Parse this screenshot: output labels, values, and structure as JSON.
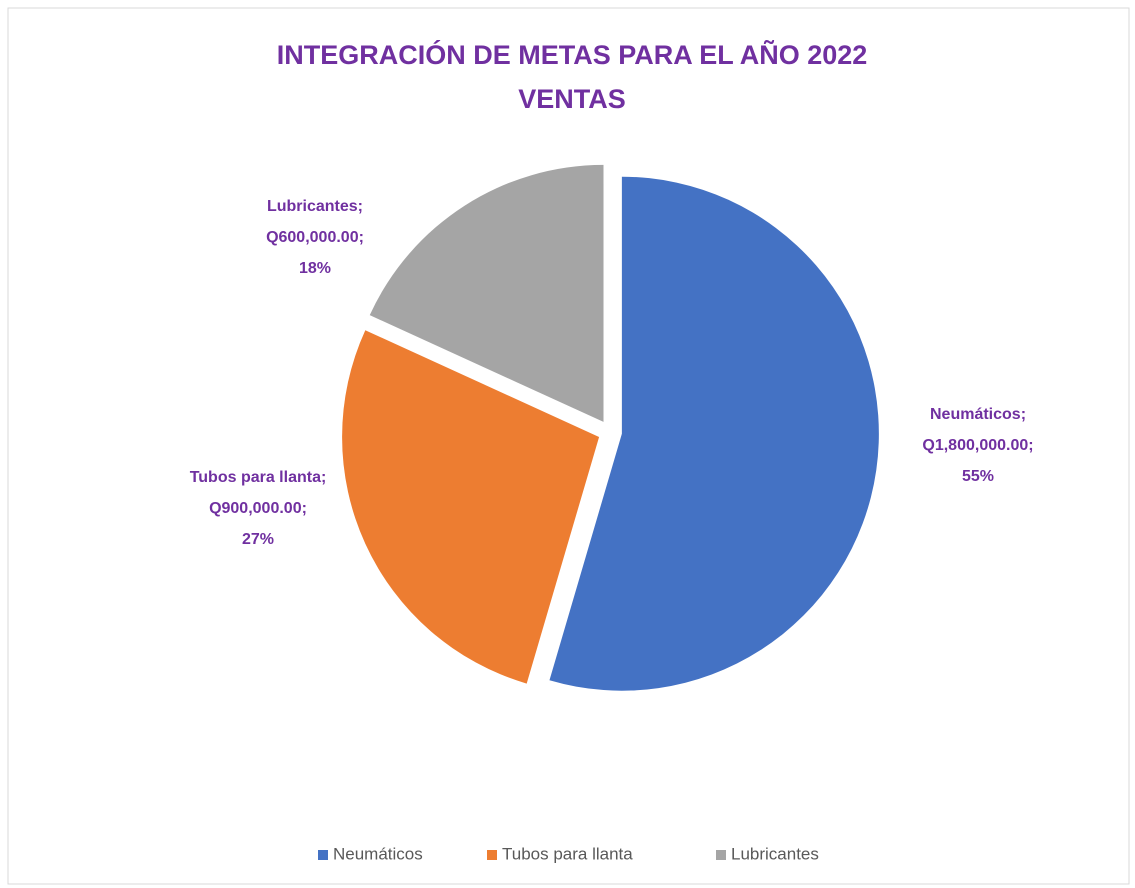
{
  "chart_data": {
    "type": "pie",
    "title": "INTEGRACIÓN DE METAS PARA EL AÑO 2022",
    "subtitle": "VENTAS",
    "categories": [
      "Neumáticos",
      "Tubos para llanta",
      "Lubricantes"
    ],
    "values": [
      1800000,
      900000,
      600000
    ],
    "value_labels": [
      "Q1,800,000.00",
      "Q900,000.00",
      "Q600,000.00"
    ],
    "percent_labels": [
      "55%",
      "27%",
      "18%"
    ],
    "separator": ";",
    "colors": [
      "#4472c4",
      "#ed7d31",
      "#a5a5a5"
    ],
    "legend": "bottom"
  }
}
